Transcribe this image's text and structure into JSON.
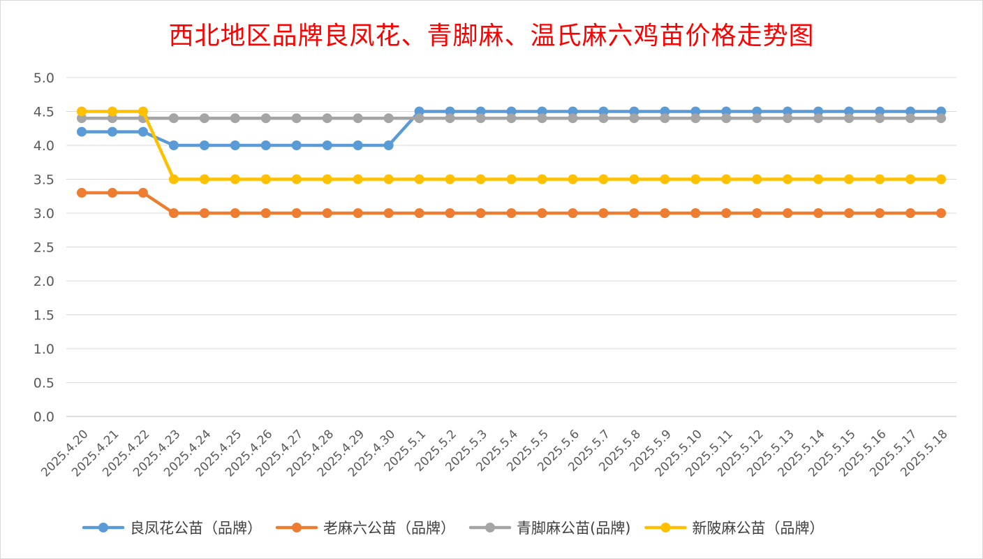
{
  "chart_data": {
    "type": "line",
    "title": "西北地区品牌良凤花、青脚麻、温氏麻六鸡苗价格走势图",
    "xlabel": "",
    "ylabel": "",
    "ylim": [
      0,
      5
    ],
    "y_ticks": [
      "0.0",
      "0.5",
      "1.0",
      "1.5",
      "2.0",
      "2.5",
      "3.0",
      "3.5",
      "4.0",
      "4.5",
      "5.0"
    ],
    "grid": true,
    "legend_position": "bottom",
    "categories": [
      "2025.4.20",
      "2025.4.21",
      "2025.4.22",
      "2025.4.23",
      "2025.4.24",
      "2025.4.25",
      "2025.4.26",
      "2025.4.27",
      "2025.4.28",
      "2025.4.29",
      "2025.4.30",
      "2025.5.1",
      "2025.5.2",
      "2025.5.3",
      "2025.5.4",
      "2025.5.5",
      "2025.5.6",
      "2025.5.7",
      "2025.5.8",
      "2025.5.9",
      "2025.5.10",
      "2025.5.11",
      "2025.5.12",
      "2025.5.13",
      "2025.5.14",
      "2025.5.15",
      "2025.5.16",
      "2025.5.17",
      "2025.5.18"
    ],
    "series": [
      {
        "name": "良凤花公苗（品牌）",
        "color": "#5b9bd5",
        "values": [
          4.2,
          4.2,
          4.2,
          4.0,
          4.0,
          4.0,
          4.0,
          4.0,
          4.0,
          4.0,
          4.0,
          4.5,
          4.5,
          4.5,
          4.5,
          4.5,
          4.5,
          4.5,
          4.5,
          4.5,
          4.5,
          4.5,
          4.5,
          4.5,
          4.5,
          4.5,
          4.5,
          4.5,
          4.5
        ]
      },
      {
        "name": "老麻六公苗（品牌）",
        "color": "#ed7d31",
        "values": [
          3.3,
          3.3,
          3.3,
          3.0,
          3.0,
          3.0,
          3.0,
          3.0,
          3.0,
          3.0,
          3.0,
          3.0,
          3.0,
          3.0,
          3.0,
          3.0,
          3.0,
          3.0,
          3.0,
          3.0,
          3.0,
          3.0,
          3.0,
          3.0,
          3.0,
          3.0,
          3.0,
          3.0,
          3.0
        ]
      },
      {
        "name": "青脚麻公苗(品牌)",
        "color": "#a5a5a5",
        "values": [
          4.4,
          4.4,
          4.4,
          4.4,
          4.4,
          4.4,
          4.4,
          4.4,
          4.4,
          4.4,
          4.4,
          4.4,
          4.4,
          4.4,
          4.4,
          4.4,
          4.4,
          4.4,
          4.4,
          4.4,
          4.4,
          4.4,
          4.4,
          4.4,
          4.4,
          4.4,
          4.4,
          4.4,
          4.4
        ]
      },
      {
        "name": "新陂麻公苗（品牌）",
        "color": "#ffc000",
        "values": [
          4.5,
          4.5,
          4.5,
          3.5,
          3.5,
          3.5,
          3.5,
          3.5,
          3.5,
          3.5,
          3.5,
          3.5,
          3.5,
          3.5,
          3.5,
          3.5,
          3.5,
          3.5,
          3.5,
          3.5,
          3.5,
          3.5,
          3.5,
          3.5,
          3.5,
          3.5,
          3.5,
          3.5,
          3.5
        ]
      }
    ],
    "draw_order": [
      0,
      1,
      2,
      3
    ]
  }
}
